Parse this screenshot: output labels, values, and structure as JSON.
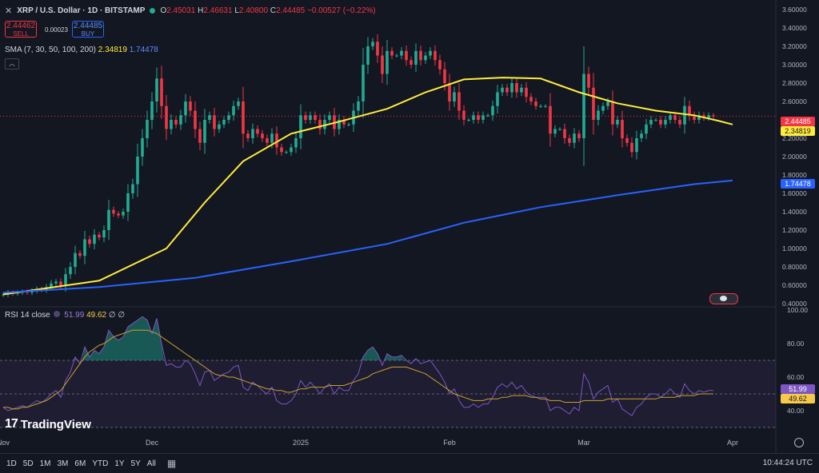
{
  "header": {
    "close_icon": "x-icon",
    "symbol": "XRP / U.S. Dollar · 1D · BITSTAMP",
    "status_color": "#22ab94",
    "o_label": "O",
    "o_value": "2.45031",
    "h_label": "H",
    "h_value": "2.46631",
    "l_label": "L",
    "l_value": "2.40800",
    "c_label": "C",
    "c_value": "2.44485",
    "change": "−0.00527 (−0.22%)"
  },
  "trade": {
    "sell_price": "2.44462",
    "sell_label": "SELL",
    "spread": "0.00023",
    "buy_price": "2.44485",
    "buy_label": "BUY"
  },
  "sma_legend": {
    "label": "SMA (7, 30, 50, 100, 200)",
    "v1": "2.34819",
    "v2": "1.74478"
  },
  "rsi_legend": {
    "label": "RSI 14 close",
    "v1": "51.99",
    "v2": "49.62",
    "v3": "∅",
    "v4": "∅"
  },
  "price_labels": {
    "last": "2.44485",
    "sma_short": "2.34819",
    "sma_long": "1.74478"
  },
  "rsi_labels": {
    "rsi": "51.99",
    "ma": "49.62"
  },
  "brand": {
    "name": "TradingView",
    "logo_text": "17"
  },
  "bottom": {
    "timeframes": [
      "1D",
      "5D",
      "1M",
      "3M",
      "6M",
      "YTD",
      "1Y",
      "5Y",
      "All"
    ],
    "clock": "10:44:24 UTC"
  },
  "colors": {
    "up": "#22ab94",
    "down": "#f23645",
    "sma_short": "#ffeb3b",
    "sma_long": "#2962ff",
    "rsi": "#7e57c2",
    "rsi_ma": "#c9a227"
  },
  "chart_data": {
    "type": "candlestick",
    "title": "XRP / U.S. Dollar · 1D · BITSTAMP",
    "price_axis": {
      "ylim": [
        0.4,
        3.6
      ],
      "ticks": [
        "3.60000",
        "3.40000",
        "3.20000",
        "3.00000",
        "2.80000",
        "2.60000",
        "2.40000",
        "2.20000",
        "2.00000",
        "1.80000",
        "1.60000",
        "1.40000",
        "1.20000",
        "1.00000",
        "0.80000",
        "0.60000",
        "0.40000"
      ]
    },
    "time_axis": {
      "labels": [
        "Nov",
        "Dec",
        "2025",
        "Feb",
        "Mar",
        "Apr"
      ],
      "label_bar_index": [
        0,
        31,
        62,
        93,
        121,
        152
      ]
    },
    "closes": [
      0.5,
      0.52,
      0.51,
      0.52,
      0.53,
      0.52,
      0.54,
      0.56,
      0.55,
      0.58,
      0.62,
      0.64,
      0.6,
      0.72,
      0.8,
      0.95,
      0.92,
      1.1,
      1.05,
      1.15,
      1.12,
      1.2,
      1.42,
      1.38,
      1.36,
      1.4,
      1.6,
      1.7,
      2.0,
      2.2,
      2.4,
      2.6,
      2.85,
      2.55,
      2.3,
      2.4,
      2.35,
      2.45,
      2.6,
      2.5,
      2.3,
      2.15,
      2.4,
      2.45,
      2.3,
      2.35,
      2.4,
      2.45,
      2.55,
      2.6,
      2.25,
      2.2,
      2.3,
      2.25,
      2.2,
      2.15,
      2.25,
      2.1,
      2.05,
      2.05,
      2.1,
      2.2,
      2.45,
      2.4,
      2.45,
      2.4,
      2.3,
      2.4,
      2.45,
      2.3,
      2.4,
      2.35,
      2.35,
      2.5,
      2.6,
      3.0,
      3.2,
      3.25,
      3.1,
      2.9,
      3.15,
      3.1,
      3.1,
      3.15,
      3.05,
      3.0,
      3.15,
      3.05,
      3.1,
      3.15,
      3.05,
      2.95,
      2.8,
      2.6,
      2.7,
      2.5,
      2.4,
      2.4,
      2.45,
      2.4,
      2.45,
      2.45,
      2.55,
      2.7,
      2.75,
      2.7,
      2.8,
      2.7,
      2.75,
      2.65,
      2.6,
      2.55,
      2.55,
      2.55,
      2.25,
      2.3,
      2.3,
      2.2,
      2.15,
      2.25,
      2.2,
      2.9,
      2.75,
      2.4,
      2.5,
      2.55,
      2.6,
      2.35,
      2.4,
      2.2,
      2.15,
      2.05,
      2.2,
      2.25,
      2.35,
      2.4,
      2.4,
      2.35,
      2.4,
      2.45,
      2.4,
      2.35,
      2.55,
      2.45,
      2.4,
      2.45,
      2.42,
      2.45,
      2.44
    ],
    "series": [
      {
        "name": "SMA short",
        "value": 2.34819,
        "points": [
          [
            0,
            0.5
          ],
          [
            20,
            0.65
          ],
          [
            34,
            1.0
          ],
          [
            42,
            1.5
          ],
          [
            50,
            1.95
          ],
          [
            60,
            2.25
          ],
          [
            70,
            2.38
          ],
          [
            80,
            2.52
          ],
          [
            88,
            2.7
          ],
          [
            96,
            2.84
          ],
          [
            104,
            2.86
          ],
          [
            112,
            2.85
          ],
          [
            120,
            2.7
          ],
          [
            128,
            2.58
          ],
          [
            136,
            2.5
          ],
          [
            144,
            2.45
          ],
          [
            149,
            2.39
          ],
          [
            152,
            2.35
          ]
        ]
      },
      {
        "name": "SMA long",
        "value": 1.74478,
        "points": [
          [
            0,
            0.52
          ],
          [
            20,
            0.58
          ],
          [
            40,
            0.68
          ],
          [
            60,
            0.86
          ],
          [
            80,
            1.05
          ],
          [
            96,
            1.28
          ],
          [
            112,
            1.45
          ],
          [
            128,
            1.58
          ],
          [
            144,
            1.7
          ],
          [
            152,
            1.74
          ]
        ]
      }
    ],
    "rsi": {
      "name": "RSI 14 close",
      "ylim": [
        30,
        100
      ],
      "ticks": [
        "100.00",
        "80.00",
        "60.00",
        "40.00"
      ],
      "bands": [
        70,
        50,
        30
      ],
      "values": [
        42,
        40,
        41,
        42,
        43,
        42,
        44,
        46,
        45,
        47,
        50,
        52,
        48,
        58,
        63,
        72,
        68,
        78,
        72,
        76,
        74,
        78,
        88,
        84,
        82,
        84,
        90,
        92,
        94,
        96,
        94,
        86,
        95,
        80,
        67,
        68,
        66,
        66,
        70,
        68,
        62,
        55,
        63,
        64,
        58,
        60,
        62,
        63,
        66,
        67,
        54,
        52,
        57,
        55,
        52,
        50,
        54,
        46,
        44,
        44,
        46,
        50,
        58,
        54,
        57,
        54,
        50,
        54,
        56,
        50,
        54,
        52,
        52,
        58,
        62,
        72,
        76,
        78,
        74,
        67,
        74,
        72,
        72,
        73,
        70,
        68,
        71,
        68,
        69,
        70,
        66,
        62,
        57,
        50,
        53,
        46,
        42,
        42,
        44,
        42,
        44,
        44,
        48,
        54,
        56,
        54,
        57,
        53,
        55,
        51,
        49,
        48,
        48,
        48,
        40,
        42,
        42,
        40,
        38,
        42,
        40,
        62,
        57,
        47,
        51,
        53,
        55,
        45,
        47,
        41,
        39,
        37,
        42,
        44,
        48,
        50,
        50,
        48,
        50,
        53,
        50,
        48,
        56,
        52,
        50,
        52,
        51,
        52,
        52
      ],
      "ma_values": [
        42,
        42,
        41,
        41,
        42,
        42,
        43,
        44,
        45,
        46,
        48,
        50,
        52,
        56,
        60,
        64,
        68,
        72,
        75,
        77,
        79,
        80,
        82,
        84,
        85,
        86,
        87,
        88,
        88,
        88,
        88,
        87,
        86,
        84,
        82,
        80,
        78,
        76,
        74,
        72,
        70,
        68,
        66,
        64,
        62,
        61,
        61,
        60,
        60,
        59,
        58,
        57,
        56,
        55,
        54,
        53,
        53,
        52,
        52,
        51,
        51,
        52,
        53,
        53,
        54,
        54,
        54,
        54,
        55,
        55,
        55,
        55,
        56,
        57,
        58,
        59,
        60,
        62,
        63,
        64,
        65,
        66,
        66,
        66,
        66,
        65,
        64,
        63,
        62,
        60,
        58,
        56,
        54,
        52,
        50,
        49,
        48,
        47,
        46,
        46,
        46,
        47,
        47,
        47,
        48,
        48,
        49,
        49,
        49,
        49,
        48,
        48,
        47,
        47,
        46,
        46,
        46,
        45,
        45,
        45,
        45,
        46,
        46,
        46,
        46,
        46,
        47,
        47,
        47,
        47,
        47,
        47,
        47,
        47,
        47,
        47,
        47,
        48,
        48,
        48,
        48,
        49,
        49,
        49,
        49,
        50,
        50,
        50,
        50
      ]
    }
  }
}
